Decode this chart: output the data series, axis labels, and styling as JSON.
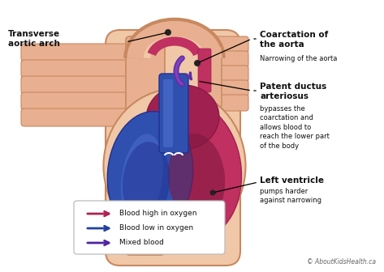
{
  "background_color": "#ffffff",
  "labels": {
    "transverse_aortic_arch": "Transverse\naortic arch",
    "coarctation_title": "Coarctation of\nthe aorta",
    "coarctation_sub": "Narrowing of the aorta",
    "patent_ductus_title": "Patent ductus\narteriosus",
    "patent_ductus_sub": "bypasses the\ncoarctation and\nallows blood to\nreach the lower part\nof the body",
    "left_ventricle_title": "Left ventricle",
    "left_ventricle_sub": "pumps harder\nagainst narrowing",
    "legend_high": "Blood high in oxygen",
    "legend_low": "Blood low in oxygen",
    "legend_mixed": "Mixed blood",
    "copyright": "© AboutKidsHealth.ca"
  },
  "colors": {
    "skin_light": "#f0c8a8",
    "skin": "#e8b090",
    "skin_dark": "#c88860",
    "skin_inner": "#dca080",
    "red_blood": "#c03060",
    "red_mid": "#a02050",
    "red_dark": "#801840",
    "red_bright": "#d04070",
    "blue_blood": "#3050b0",
    "blue_dark": "#203090",
    "blue_light": "#4060c0",
    "blue_bright": "#5070d0",
    "purple_blood": "#6030a0",
    "purple_light": "#8040c0",
    "arrow_red": "#b02050",
    "arrow_blue": "#2040a0",
    "arrow_purple": "#5025a0",
    "text_dark": "#111111",
    "legend_border": "#bbbbbb"
  },
  "fig_width": 4.73,
  "fig_height": 3.36,
  "dpi": 100
}
